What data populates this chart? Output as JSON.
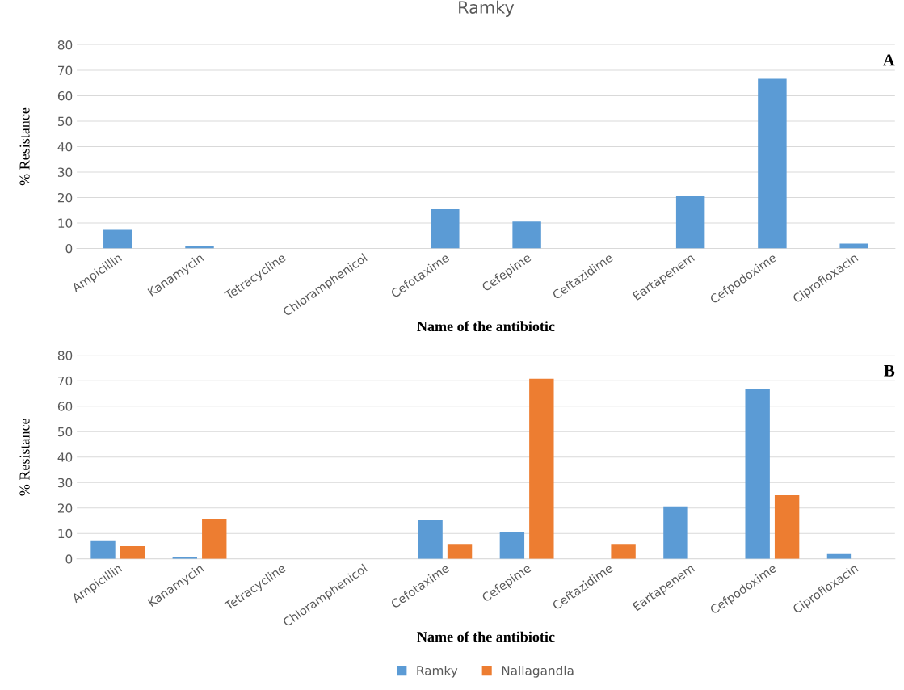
{
  "chart_data": [
    {
      "type": "bar",
      "title": "Ramky",
      "xlabel": "Name of the antibiotic",
      "ylabel": "% Resistance",
      "annotations": [
        "A"
      ],
      "categories": [
        "Ampicillin",
        "Kanamycin",
        "Tetracycline",
        "Chloramphenicol",
        "Cefotaxime",
        "Cefepime",
        "Ceftazidime",
        "Eartapenem",
        "Cefpodoxime",
        "Ciprofloxacin"
      ],
      "series": [
        {
          "color": "#5b9bd5",
          "values": [
            7.3,
            0.8,
            0,
            0,
            15.4,
            10.5,
            0,
            20.6,
            66.7,
            1.9
          ]
        }
      ],
      "ylim": [
        0,
        80
      ],
      "yticks": [
        0,
        10,
        20,
        30,
        40,
        50,
        60,
        70,
        80
      ],
      "grid": "y"
    },
    {
      "type": "bar",
      "xlabel": "Name of the antibiotic",
      "ylabel": "% Resistance",
      "annotations": [
        "B"
      ],
      "categories": [
        "Ampicillin",
        "Kanamycin",
        "Tetracycline",
        "Chloramphenicol",
        "Cefotaxime",
        "Cefepime",
        "Ceftazidime",
        "Eartapenem",
        "Cefpodoxime",
        "Ciprofloxacin"
      ],
      "series": [
        {
          "name": "Ramky",
          "color": "#5b9bd5",
          "values": [
            7.3,
            0.8,
            0,
            0,
            15.4,
            10.5,
            0,
            20.6,
            66.7,
            1.9
          ]
        },
        {
          "name": "Nallagandla",
          "color": "#ed7d31",
          "values": [
            5,
            15.8,
            0,
            0,
            5.9,
            70.8,
            5.9,
            0,
            25,
            0
          ]
        }
      ],
      "ylim": [
        0,
        80
      ],
      "yticks": [
        0,
        10,
        20,
        30,
        40,
        50,
        60,
        70,
        80
      ],
      "grid": "y",
      "legend": "bottom"
    }
  ]
}
